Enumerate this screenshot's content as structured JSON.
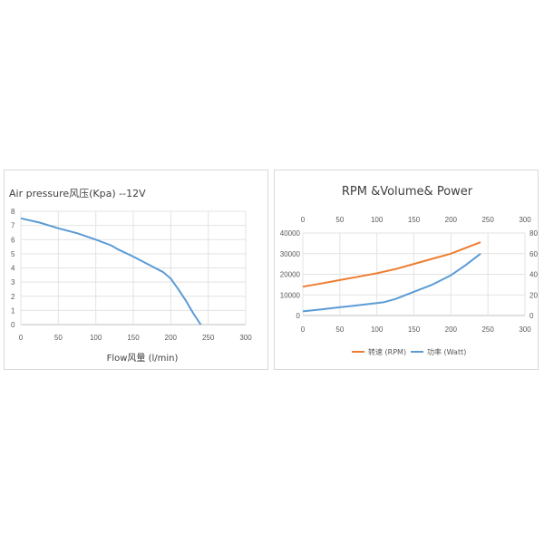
{
  "chart_data": [
    {
      "type": "line",
      "title": "Air pressure风压(Kpa)  --12V",
      "xlabel": "Flow风量  (l/min)",
      "ylabel": "",
      "xlim": [
        0,
        300
      ],
      "ylim": [
        0,
        8
      ],
      "xticks": [
        "0",
        "50",
        "100",
        "150",
        "200",
        "250",
        "300"
      ],
      "yticks": [
        "0",
        "1",
        "2",
        "3",
        "4",
        "5",
        "6",
        "7",
        "8"
      ],
      "grid": true,
      "legend": "none",
      "series": [
        {
          "color": "#5b9bd5",
          "x": [
            0,
            25,
            50,
            75,
            100,
            120,
            130,
            150,
            170,
            190,
            200,
            210,
            220,
            230,
            240
          ],
          "y": [
            7.5,
            7.2,
            6.8,
            6.45,
            6.0,
            5.6,
            5.3,
            4.8,
            4.25,
            3.7,
            3.25,
            2.5,
            1.7,
            0.8,
            0
          ]
        }
      ]
    },
    {
      "type": "line",
      "title": "RPM &Volume& Power",
      "xlim": [
        0,
        300
      ],
      "ylim_left": [
        0,
        40000
      ],
      "ylim_right": [
        0,
        80
      ],
      "xticks": [
        "0",
        "50",
        "100",
        "150",
        "200",
        "250",
        "300"
      ],
      "yticks_left": [
        "0",
        "10000",
        "20000",
        "30000",
        "40000"
      ],
      "yticks_right": [
        "0",
        "20",
        "40",
        "60",
        "80"
      ],
      "grid": true,
      "legend": "bottom",
      "series": [
        {
          "name": "转速  (RPM)",
          "color": "#ed7d31",
          "axis": "left",
          "x": [
            0,
            25,
            50,
            75,
            100,
            125,
            150,
            175,
            200,
            225,
            240
          ],
          "y": [
            14000,
            15500,
            17200,
            18800,
            20500,
            22500,
            25000,
            27500,
            30000,
            33500,
            35500
          ]
        },
        {
          "name": "功率  (Watt)",
          "color": "#5b9bd5",
          "axis": "right",
          "x": [
            0,
            25,
            50,
            75,
            100,
            110,
            125,
            150,
            175,
            200,
            220,
            240
          ],
          "y": [
            4,
            6,
            8,
            10,
            12,
            13,
            16,
            23,
            30,
            39,
            49,
            60
          ]
        }
      ]
    }
  ]
}
